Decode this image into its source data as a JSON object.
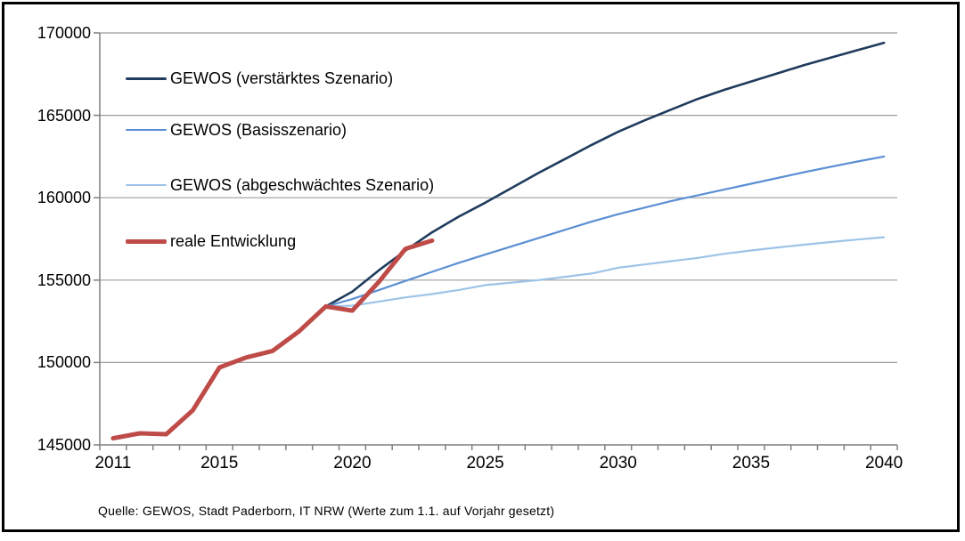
{
  "page": {
    "background": "#ffffff",
    "border_color": "#000000"
  },
  "source_note": "Quelle: GEWOS, Stadt Paderborn, IT NRW (Werte zum 1.1. auf Vorjahr gesetzt)",
  "chart_data": {
    "type": "line",
    "title": "",
    "xlabel": "",
    "ylabel": "",
    "xlim": [
      2010.5,
      2040.5
    ],
    "ylim": [
      145000,
      170000
    ],
    "x_ticks": [
      2011,
      2015,
      2020,
      2025,
      2030,
      2035,
      2040
    ],
    "y_ticks": [
      145000,
      150000,
      155000,
      160000,
      165000,
      170000
    ],
    "grid": true,
    "legend_position": "top-left",
    "gridline_color": "#9c9c9c",
    "axis_color": "#7f7f7f",
    "tick_label_color": "#000000",
    "series": [
      {
        "name": "GEWOS (verstärktes Szenario)",
        "color": "#1f3b5d",
        "line_width": 2.6,
        "x_start": 2019,
        "x_step": 1,
        "values": [
          153400,
          154300,
          155600,
          156800,
          157900,
          158850,
          159700,
          160600,
          161500,
          162350,
          163200,
          164000,
          164700,
          165350,
          166000,
          166550,
          167050,
          167550,
          168050,
          168500,
          168950,
          169400
        ]
      },
      {
        "name": "GEWOS (Basisszenario)",
        "color": "#5b8fd4",
        "line_width": 2.2,
        "x_start": 2019,
        "x_step": 1,
        "values": [
          153400,
          153850,
          154400,
          154950,
          155500,
          156050,
          156550,
          157050,
          157550,
          158050,
          158550,
          159000,
          159400,
          159800,
          160150,
          160500,
          160850,
          161200,
          161550,
          161880,
          162200,
          162500
        ]
      },
      {
        "name": "GEWOS (abgeschwächtes Szenario)",
        "color": "#9dc3e8",
        "line_width": 2.2,
        "x_start": 2019,
        "x_step": 1,
        "values": [
          153400,
          153450,
          153700,
          153950,
          154150,
          154400,
          154700,
          154850,
          155000,
          155200,
          155400,
          155750,
          155950,
          156150,
          156350,
          156600,
          156800,
          156980,
          157150,
          157310,
          157460,
          157600
        ]
      },
      {
        "name": "reale Entwicklung",
        "color": "#be4b48",
        "line_width": 5,
        "x_start": 2011,
        "x_step": 1,
        "values": [
          145400,
          145700,
          145650,
          147100,
          149700,
          150300,
          150700,
          151900,
          153400,
          153150,
          154900,
          156900,
          157400
        ]
      }
    ]
  }
}
